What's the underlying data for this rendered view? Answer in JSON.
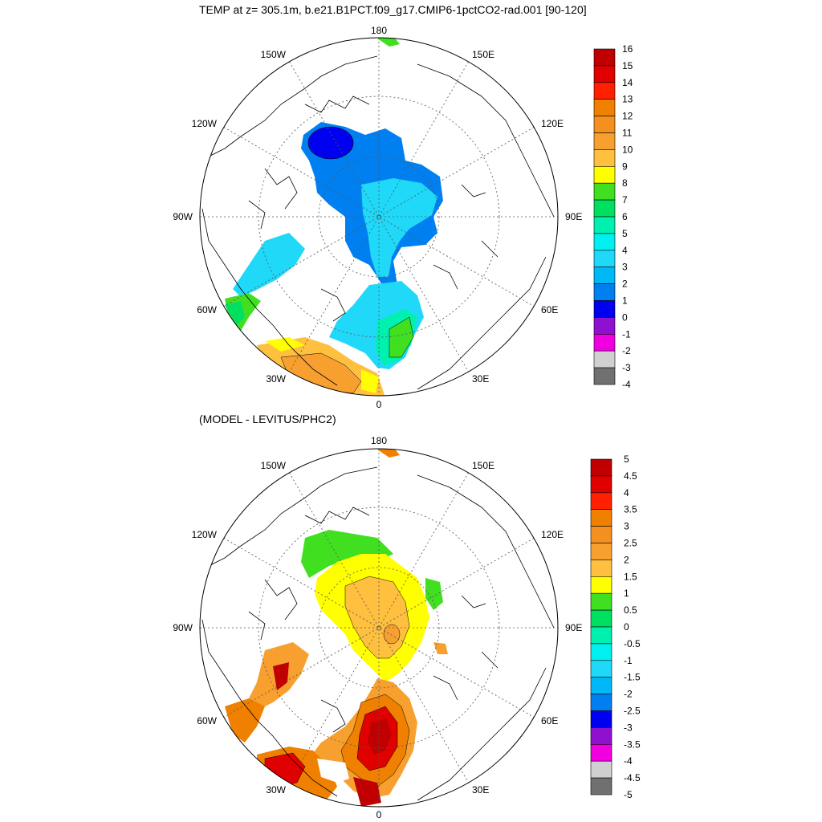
{
  "panels": [
    {
      "title": "TEMP at z= 305.1m, b.e21.B1PCT.f09_g17.CMIP6-1pctCO2-rad.001 [90-120]",
      "lon_labels": [
        "180",
        "150E",
        "120E",
        "90E",
        "60E",
        "30E",
        "0",
        "30W",
        "60W",
        "90W",
        "120W",
        "150W"
      ],
      "colorbar": {
        "labels": [
          "16",
          "15",
          "14",
          "13",
          "12",
          "11",
          "10",
          "9",
          "8",
          "7",
          "6",
          "5",
          "4",
          "3",
          "2",
          "1",
          "0",
          "-1",
          "-2",
          "-3",
          "-4"
        ],
        "colors": [
          "#c00000",
          "#e00000",
          "#ff2000",
          "#f08000",
          "#f39020",
          "#f7a030",
          "#ffc040",
          "#ffff00",
          "#40e020",
          "#00e060",
          "#00f0b0",
          "#00f0f0",
          "#20d8f8",
          "#00b8f8",
          "#0080f0",
          "#0000f0",
          "#9010d0",
          "#f000e0",
          "#d0d0d0",
          "#707070"
        ]
      }
    },
    {
      "title": "(MODEL - LEVITUS/PHC2)",
      "lon_labels": [
        "180",
        "150E",
        "120E",
        "90E",
        "60E",
        "30E",
        "0",
        "30W",
        "60W",
        "90W",
        "120W",
        "150W"
      ],
      "colorbar": {
        "labels": [
          "5",
          "4.5",
          "4",
          "3.5",
          "3",
          "2.5",
          "2",
          "1.5",
          "1",
          "0.5",
          "0",
          "-0.5",
          "-1",
          "-1.5",
          "-2",
          "-2.5",
          "-3",
          "-3.5",
          "-4",
          "-4.5",
          "-5"
        ],
        "colors": [
          "#c00000",
          "#e00000",
          "#ff2000",
          "#f08000",
          "#f39020",
          "#f7a030",
          "#ffc040",
          "#ffff00",
          "#40e020",
          "#00e060",
          "#00f0b0",
          "#00f0f0",
          "#20d8f8",
          "#00b8f8",
          "#0080f0",
          "#0000f0",
          "#9010d0",
          "#f000e0",
          "#d0d0d0",
          "#707070"
        ]
      }
    }
  ]
}
